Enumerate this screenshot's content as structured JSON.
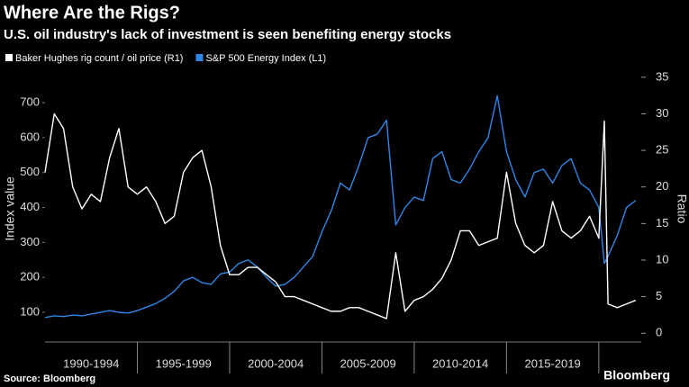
{
  "chart_data": {
    "type": "line",
    "title": "Where Are the Rigs?",
    "subtitle": "U.S. oil industry's lack of investment is seen benefiting energy stocks",
    "y_label": "Index value",
    "y2_label": "Ratio",
    "source": "Source: Bloomberg",
    "brand": "Bloomberg",
    "x": [
      1990.0,
      1990.5,
      1991.0,
      1991.5,
      1992.0,
      1992.5,
      1993.0,
      1993.5,
      1994.0,
      1994.5,
      1995.0,
      1995.5,
      1996.0,
      1996.5,
      1997.0,
      1997.5,
      1998.0,
      1998.5,
      1999.0,
      1999.5,
      2000.0,
      2000.5,
      2001.0,
      2001.5,
      2002.0,
      2002.5,
      2003.0,
      2003.5,
      2004.0,
      2004.5,
      2005.0,
      2005.5,
      2006.0,
      2006.5,
      2007.0,
      2007.5,
      2008.0,
      2008.5,
      2009.0,
      2009.5,
      2010.0,
      2010.5,
      2011.0,
      2011.5,
      2012.0,
      2012.5,
      2013.0,
      2013.5,
      2014.0,
      2014.5,
      2015.0,
      2015.5,
      2016.0,
      2016.5,
      2017.0,
      2017.5,
      2018.0,
      2018.5,
      2019.0,
      2019.5,
      2020.0,
      2020.3,
      2020.5,
      2021.0,
      2021.5,
      2022.0
    ],
    "series": [
      {
        "name": "Baker Hughes rig count / oil price (R1)",
        "color": "#ffffff",
        "axis": "y2",
        "values": [
          22,
          30,
          28,
          20,
          17,
          19,
          18,
          24,
          28,
          20,
          19,
          20,
          18,
          15,
          16,
          22,
          24,
          25,
          20,
          12,
          8,
          8,
          9,
          9,
          8,
          7,
          5,
          5,
          4.5,
          4,
          3.5,
          3,
          3,
          3.5,
          3.5,
          3,
          2.5,
          2,
          11,
          3,
          4.5,
          5,
          6,
          7.5,
          10,
          14,
          14,
          12,
          12.5,
          13,
          22,
          15,
          12,
          11,
          12,
          18,
          14,
          13,
          14,
          16,
          13,
          29,
          4,
          3.5,
          4,
          4.5
        ]
      },
      {
        "name": "S&P 500 Energy Index (L1)",
        "color": "#2f86e6",
        "values": [
          85,
          90,
          88,
          92,
          90,
          95,
          100,
          105,
          100,
          98,
          105,
          115,
          125,
          140,
          160,
          190,
          200,
          185,
          180,
          210,
          215,
          240,
          250,
          230,
          200,
          175,
          180,
          200,
          230,
          260,
          330,
          390,
          470,
          450,
          520,
          600,
          610,
          650,
          350,
          400,
          430,
          420,
          540,
          560,
          480,
          470,
          510,
          560,
          600,
          720,
          560,
          480,
          430,
          500,
          510,
          470,
          520,
          540,
          470,
          450,
          400,
          240,
          260,
          320,
          400,
          420
        ]
      }
    ],
    "xlim": [
      1990,
      2022.3
    ],
    "xticks": [
      {
        "value": 1992.5,
        "label": "1990-1994"
      },
      {
        "value": 1997.5,
        "label": "1995-1999"
      },
      {
        "value": 2002.5,
        "label": "2000-2004"
      },
      {
        "value": 2007.5,
        "label": "2005-2009"
      },
      {
        "value": 2012.5,
        "label": "2010-2014"
      },
      {
        "value": 2017.5,
        "label": "2015-2019"
      }
    ],
    "ylim": [
      15,
      775
    ],
    "yticks": [
      100,
      200,
      300,
      400,
      500,
      600,
      700
    ],
    "y2lim": [
      -1.2,
      35.1
    ],
    "y2ticks": [
      0,
      5,
      10,
      15,
      20,
      25,
      30,
      35
    ]
  }
}
